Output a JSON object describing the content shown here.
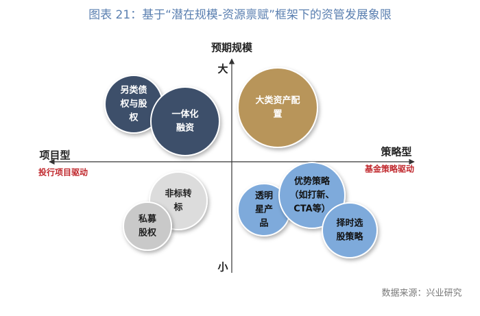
{
  "title": "图表 21：基于“潜在规模-资源禀赋”框架下的资管发展象限",
  "axes": {
    "vertical": {
      "label": "预期规模",
      "top": "大",
      "bottom": "小"
    },
    "left": {
      "label": "项目型",
      "sublabel": "投行项目驱动"
    },
    "right": {
      "label": "策略型",
      "sublabel": "基金策略驱动"
    }
  },
  "nodes": [
    {
      "lines": [
        "另类债",
        "权与股",
        "权"
      ]
    },
    {
      "lines": [
        "一体化",
        "融资"
      ]
    },
    {
      "lines": [
        "大类资产配",
        "置"
      ]
    },
    {
      "lines": [
        "非标转",
        "标"
      ]
    },
    {
      "lines": [
        "私募",
        "股权"
      ]
    },
    {
      "lines": [
        "透明",
        "星产",
        "品"
      ]
    },
    {
      "lines": [
        "优势策略",
        "（如打新、",
        "CTA等）"
      ]
    },
    {
      "lines": [
        "择时选",
        "股策略"
      ]
    }
  ],
  "source": "数据来源：兴业研究"
}
